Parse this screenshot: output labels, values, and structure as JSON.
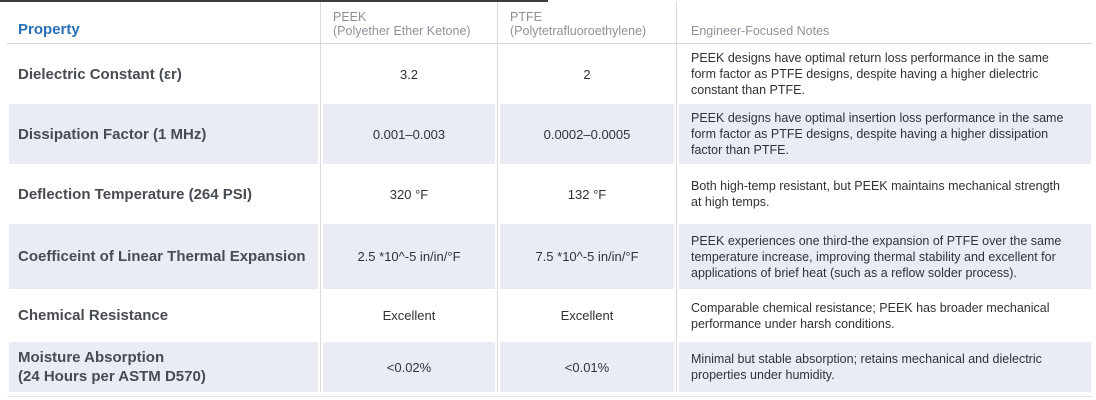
{
  "colors": {
    "accent_blue": "#2770b8",
    "header_gray": "#8d929b",
    "shaded_row_bg": "#e9edf3",
    "body_text": "#2f3237"
  },
  "table": {
    "columns": [
      {
        "label": "Property"
      },
      {
        "label": "PEEK",
        "sublabel": "(Polyether Ether Ketone)"
      },
      {
        "label": "PTFE",
        "sublabel": "(Polytetrafluoroethylene)"
      },
      {
        "label": "Engineer-Focused Notes"
      }
    ],
    "rows": [
      {
        "property": "Dielectric Constant (εr)",
        "peek": "3.2",
        "ptfe": "2",
        "notes": "PEEK designs have optimal return loss performance in the same form factor as PTFE designs, despite having a higher dielectric constant than PTFE."
      },
      {
        "property": "Dissipation Factor (1 MHz)",
        "peek": "0.001–0.003",
        "ptfe": "0.0002–0.0005",
        "notes": "PEEK designs have optimal insertion loss performance in the same form factor as PTFE designs, despite having a higher dissipation factor than PTFE."
      },
      {
        "property": "Deflection Temperature (264 PSI)",
        "peek": "320 °F",
        "ptfe": "132 °F",
        "notes": "Both high-temp resistant, but PEEK maintains mechanical strength at high temps."
      },
      {
        "property": "Coefficeint of Linear Thermal Expansion",
        "peek": "2.5 *10^-5 in/in/°F",
        "ptfe": "7.5 *10^-5 in/in/°F",
        "notes": "PEEK experiences one third-the expansion of PTFE over the same temperature increase, improving thermal stability and excellent for applications of brief heat (such as a reflow solder process)."
      },
      {
        "property": "Chemical Resistance",
        "peek": "Excellent",
        "ptfe": "Excellent",
        "notes": "Comparable chemical resistance; PEEK has broader mechanical performance under harsh conditions."
      },
      {
        "property": "Moisture Absorption\n(24 Hours per ASTM D570)",
        "peek": "<0.02%",
        "ptfe": "<0.01%",
        "notes": "Minimal but stable absorption; retains mechanical and dielectric properties under humidity."
      }
    ]
  }
}
